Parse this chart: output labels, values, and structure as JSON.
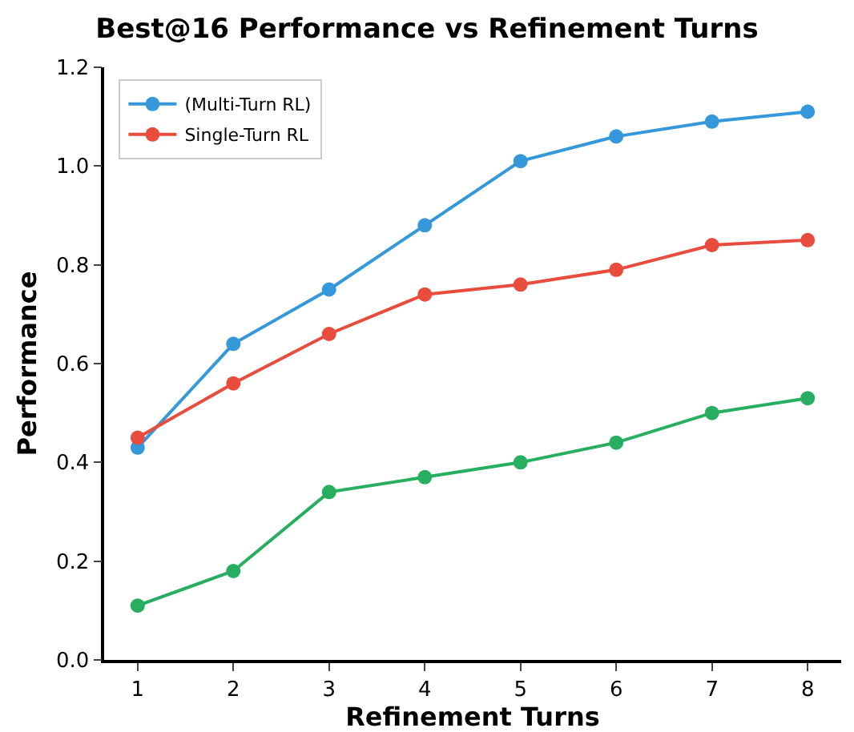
{
  "chart_data": {
    "type": "line",
    "title": "Best@16 Performance vs Refinement Turns",
    "xlabel": "Refinement Turns",
    "ylabel": "Performance",
    "x": [
      1,
      2,
      3,
      4,
      5,
      6,
      7,
      8
    ],
    "series": [
      {
        "name": "(Multi-Turn RL)",
        "color": "#3498db",
        "values": [
          0.43,
          0.64,
          0.75,
          0.88,
          1.01,
          1.06,
          1.09,
          1.11
        ]
      },
      {
        "name": "Single-Turn RL",
        "color": "#e74c3c",
        "values": [
          0.45,
          0.56,
          0.66,
          0.74,
          0.76,
          0.79,
          0.84,
          0.85
        ]
      },
      {
        "color": "#27ae60",
        "values": [
          0.11,
          0.18,
          0.34,
          0.37,
          0.4,
          0.44,
          0.5,
          0.53
        ]
      }
    ],
    "xlim": [
      0.65,
      8.35
    ],
    "xticks": [
      1,
      2,
      3,
      4,
      5,
      6,
      7,
      8
    ],
    "ylim": [
      0,
      1.2
    ],
    "yticks": [
      {
        "value": 0,
        "label": "0.0"
      },
      0.2,
      0.4,
      0.6,
      0.8,
      {
        "value": 1,
        "label": "1.0"
      },
      1.2
    ],
    "grid": false,
    "legend": "top left",
    "marker": "circle",
    "line_style": "solid"
  }
}
